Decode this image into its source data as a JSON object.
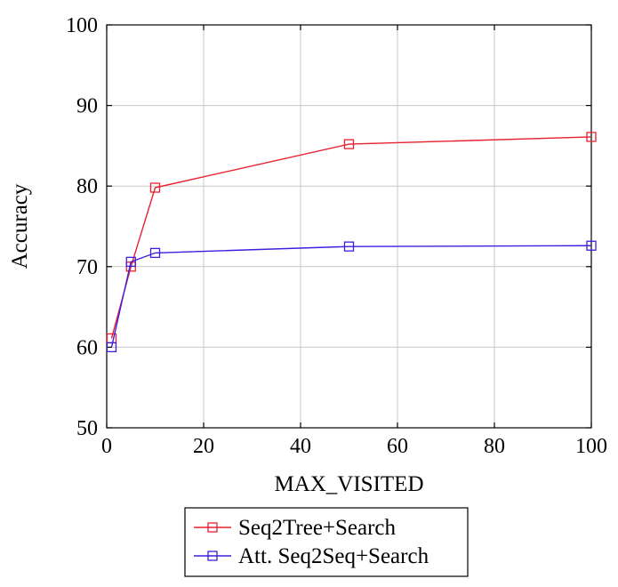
{
  "chart_data": {
    "type": "line",
    "title": "",
    "xlabel": "MAX_VISITED",
    "ylabel": "Accuracy",
    "xlim": [
      0,
      100
    ],
    "ylim": [
      50,
      100
    ],
    "xticks": [
      0,
      20,
      40,
      60,
      80,
      100
    ],
    "yticks": [
      50,
      60,
      70,
      80,
      90,
      100
    ],
    "grid": true,
    "legend_position": "bottom-outside",
    "series": [
      {
        "name": "Seq2Tree+Search",
        "color": "#e8212f",
        "marker": "square",
        "x": [
          1,
          5,
          10,
          50,
          100
        ],
        "y": [
          61.1,
          70.0,
          79.8,
          85.2,
          86.1
        ]
      },
      {
        "name": "Att. Seq2Seq+Search",
        "color": "#3b1fe0",
        "marker": "square",
        "x": [
          1,
          5,
          10,
          50,
          100
        ],
        "y": [
          60.0,
          70.6,
          71.7,
          72.5,
          72.6
        ]
      }
    ]
  }
}
